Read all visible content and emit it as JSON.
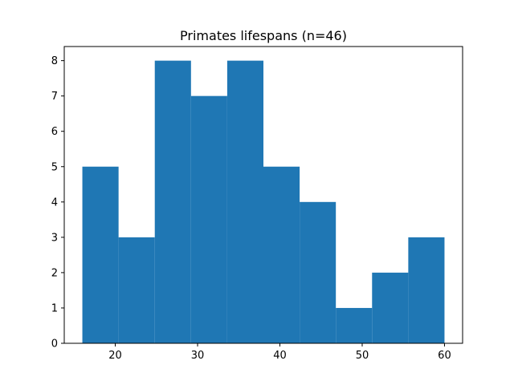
{
  "chart_data": {
    "type": "bar",
    "title": "Primates lifespans (n=46)",
    "xlabel": "",
    "ylabel": "",
    "bin_edges": [
      16,
      20.4,
      24.8,
      29.2,
      33.6,
      38,
      42.4,
      46.8,
      51.2,
      55.6,
      60
    ],
    "values": [
      5,
      3,
      8,
      7,
      8,
      5,
      4,
      1,
      2,
      3
    ],
    "xlim": [
      13.8,
      62.2
    ],
    "ylim": [
      0,
      8.4
    ],
    "xticks": [
      20,
      30,
      40,
      50,
      60
    ],
    "yticks": [
      0,
      1,
      2,
      3,
      4,
      5,
      6,
      7,
      8
    ],
    "bar_color": "#1f77b4",
    "grid": false,
    "legend": "none"
  }
}
